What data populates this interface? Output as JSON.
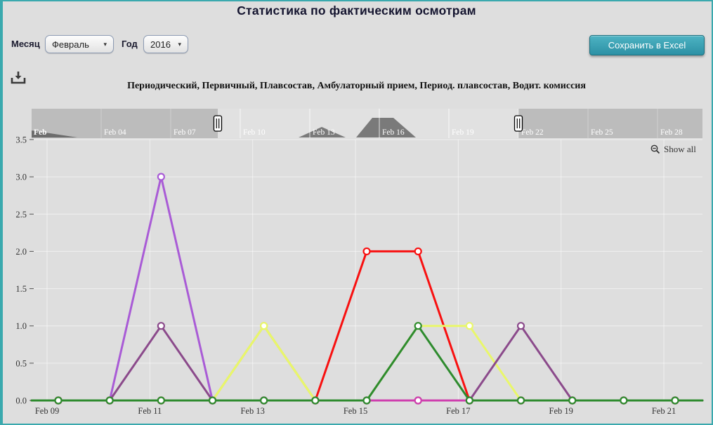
{
  "page": {
    "title": "Статистика по фактическим осмотрам",
    "accent_color": "#3aa9ae",
    "background": "#dedede"
  },
  "controls": {
    "month_label": "Месяц",
    "month_value": "Февраль",
    "year_label": "Год",
    "year_value": "2016",
    "export_button_label": "Сохранить в Excel",
    "download_icon": "download-icon",
    "dropdown_arrow": "▾"
  },
  "chart": {
    "subtitle": "Периодический, Первичный, Плавсостав, Амбулаторный прием, Период. плавсостав, Водит. комиссия",
    "show_all_label": "Show all",
    "show_all_icon": "zoom-out-magnifier-icon"
  },
  "chart_data": {
    "type": "line",
    "title": "Периодический, Первичный, Плавсостав, Амбулаторный прием, Период. плавсостав, Водит. комиссия",
    "subtitle_series_names": [
      "Периодический",
      "Первичный",
      "Плавсостав",
      "Амбулаторный прием",
      "Период. плавсостав",
      "Водит. комиссия"
    ],
    "x_unit": "day of February 2016",
    "x_days": [
      9,
      10,
      11,
      12,
      13,
      14,
      15,
      16,
      17,
      18,
      19,
      20,
      21
    ],
    "x_tick_days": [
      9,
      11,
      13,
      15,
      17,
      19,
      21
    ],
    "x_tick_labels": [
      "Feb 09",
      "Feb 11",
      "Feb 13",
      "Feb 15",
      "Feb 17",
      "Feb 19",
      "Feb 21"
    ],
    "y_ticks": [
      0.0,
      0.5,
      1.0,
      1.5,
      2.0,
      2.5,
      3.0,
      3.5
    ],
    "ylim": [
      0,
      3.5
    ],
    "grid": true,
    "legend_position": "none",
    "marker_fill": "#ffffff",
    "series": [
      {
        "id": "violet-line",
        "color": "#a95bd6",
        "values": [
          0,
          0,
          3,
          0,
          0,
          0,
          0,
          0,
          0,
          0,
          0,
          0,
          0
        ]
      },
      {
        "id": "khaki-line",
        "color": "#c9b954",
        "values": [
          0,
          0,
          0,
          0,
          1,
          0,
          0,
          0,
          0,
          0,
          0,
          0,
          0
        ]
      },
      {
        "id": "red-line",
        "color": "#f81010",
        "values": [
          0,
          0,
          0,
          0,
          0,
          0,
          2,
          2,
          0,
          0,
          0,
          0,
          0
        ]
      },
      {
        "id": "yellow-line",
        "color": "#e9f76a",
        "values": [
          0,
          0,
          0,
          0,
          1,
          0,
          0,
          1,
          1,
          0,
          0,
          0,
          0
        ]
      },
      {
        "id": "plum-line",
        "color": "#8b4a8b",
        "values": [
          0,
          0,
          1,
          0,
          0,
          0,
          0,
          0,
          0,
          1,
          0,
          0,
          0
        ]
      },
      {
        "id": "magenta-line",
        "color": "#cf3fae",
        "values": [
          0,
          0,
          0,
          0,
          0,
          0,
          0,
          0,
          0,
          0,
          0,
          0,
          0
        ]
      },
      {
        "id": "green-line",
        "color": "#2e8b2e",
        "values": [
          0,
          0,
          0,
          0,
          0,
          0,
          0,
          1,
          0,
          0,
          0,
          0,
          0
        ]
      }
    ],
    "navigator": {
      "labels": [
        "Feb",
        "Feb 04",
        "Feb 07",
        "Feb 10",
        "Feb 13",
        "Feb 16",
        "Feb 19",
        "Feb 22",
        "Feb 25",
        "Feb 28"
      ],
      "selected_range_days": [
        9,
        22
      ]
    }
  }
}
